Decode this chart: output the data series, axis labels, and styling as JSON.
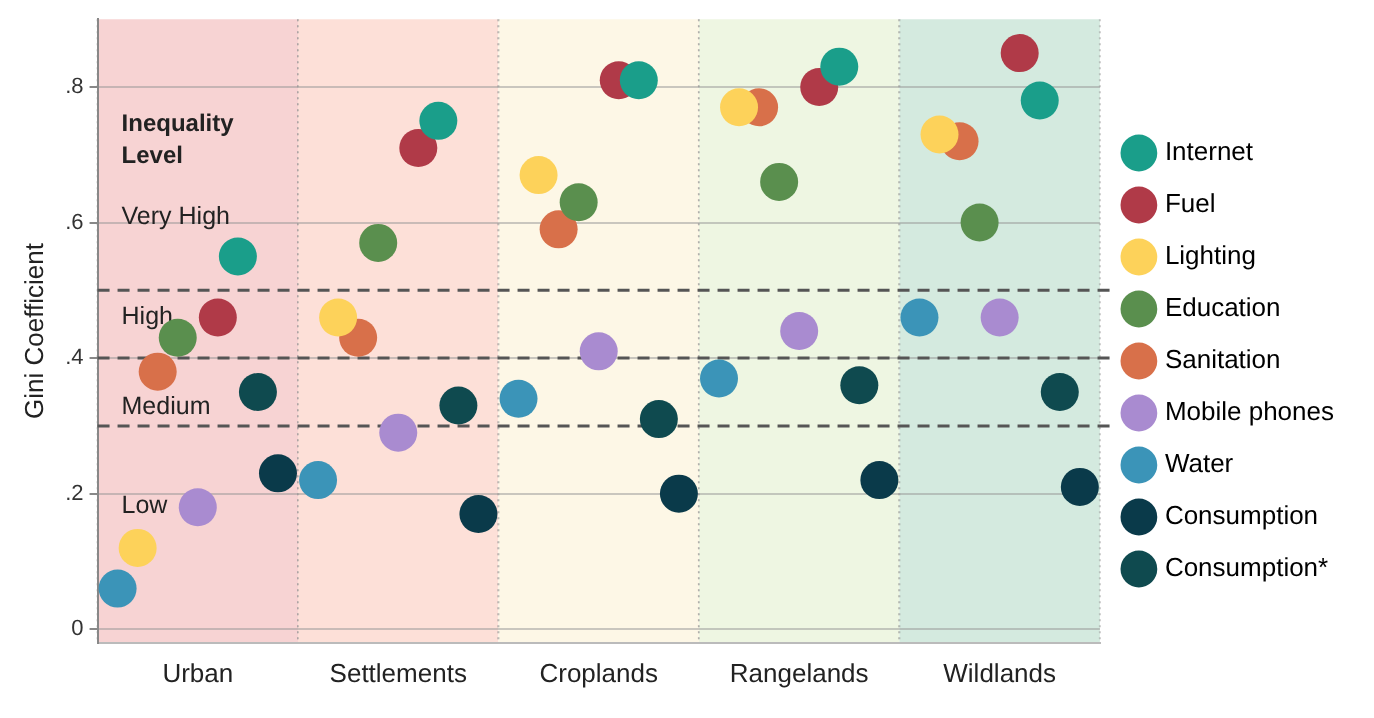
{
  "chart_data": {
    "type": "scatter",
    "ylabel": "Gini Coefficient",
    "categories": [
      "Urban",
      "Settlements",
      "Croplands",
      "Rangelands",
      "Wildlands"
    ],
    "ylim": [
      -0.02,
      0.9
    ],
    "yticks": [
      {
        "value": 0,
        "label": "0"
      },
      {
        "value": 0.2,
        "label": ".2"
      },
      {
        "value": 0.4,
        "label": ".4"
      },
      {
        "value": 0.6,
        "label": ".6"
      },
      {
        "value": 0.8,
        "label": ".8"
      }
    ],
    "grid": "y",
    "legend": "right",
    "marker": "circle",
    "series": [
      {
        "name": "Internet",
        "color": "#1a9e8a",
        "values": [
          0.55,
          0.75,
          0.81,
          0.83,
          0.78
        ]
      },
      {
        "name": "Fuel",
        "color": "#b03a48",
        "values": [
          0.46,
          0.71,
          0.81,
          0.8,
          0.85
        ]
      },
      {
        "name": "Lighting",
        "color": "#fdd25a",
        "values": [
          0.12,
          0.46,
          0.67,
          0.77,
          0.73
        ]
      },
      {
        "name": "Education",
        "color": "#5a8f4e",
        "values": [
          0.43,
          0.57,
          0.63,
          0.66,
          0.6
        ]
      },
      {
        "name": "Sanitation",
        "color": "#d8704a",
        "values": [
          0.38,
          0.43,
          0.59,
          0.77,
          0.72
        ]
      },
      {
        "name": "Mobile phones",
        "color": "#a98bd0",
        "values": [
          0.18,
          0.29,
          0.41,
          0.44,
          0.46
        ]
      },
      {
        "name": "Water",
        "color": "#3b94b8",
        "values": [
          0.06,
          0.22,
          0.34,
          0.37,
          0.46
        ]
      },
      {
        "name": "Consumption",
        "color": "#0a3a4a",
        "values": [
          0.23,
          0.17,
          0.2,
          0.22,
          0.21
        ]
      },
      {
        "name": "Consumption*",
        "color": "#0f4a4f",
        "values": [
          0.35,
          0.33,
          0.31,
          0.36,
          0.35
        ]
      }
    ],
    "bands": [
      {
        "axis": "x",
        "from": "Urban",
        "to": "Urban",
        "color": "#f7d3d3"
      },
      {
        "axis": "x",
        "from": "Settlements",
        "to": "Settlements",
        "color": "#fde0d8"
      },
      {
        "axis": "x",
        "from": "Croplands",
        "to": "Croplands",
        "color": "#fdf7e6"
      },
      {
        "axis": "x",
        "from": "Rangelands",
        "to": "Rangelands",
        "color": "#eef6e2"
      },
      {
        "axis": "x",
        "from": "Wildlands",
        "to": "Wildlands",
        "color": "#d4eadf"
      }
    ],
    "ref_lines": [
      {
        "axis": "y",
        "value": 0.5,
        "line_style": "dashed",
        "color": "#555555"
      },
      {
        "axis": "y",
        "value": 0.4,
        "line_style": "dashed",
        "color": "#555555"
      },
      {
        "axis": "y",
        "value": 0.3,
        "line_style": "dashed",
        "color": "#555555"
      }
    ],
    "annotations": [
      "Inequality Level",
      "Very High",
      "High",
      "Medium",
      "Low"
    ]
  }
}
